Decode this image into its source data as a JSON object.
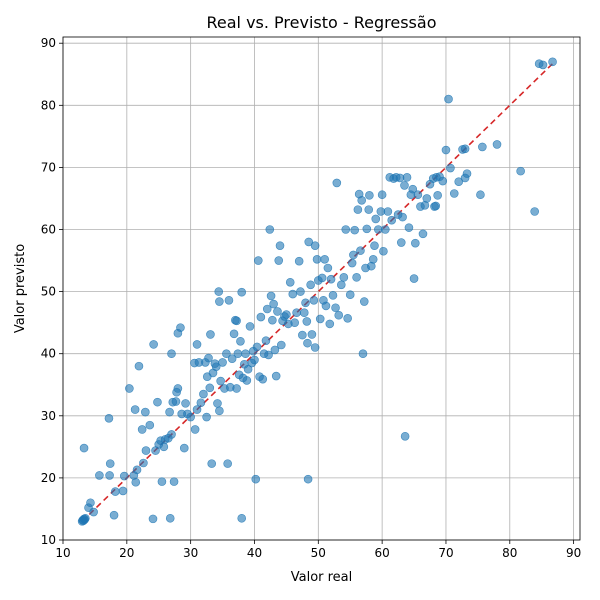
{
  "chart_data": {
    "type": "scatter",
    "title": "Real vs. Previsto - Regressão",
    "xlabel": "Valor real",
    "ylabel": "Valor previsto",
    "xlim": [
      10,
      91
    ],
    "ylim": [
      10,
      91
    ],
    "xticks": [
      10,
      20,
      30,
      40,
      50,
      60,
      70,
      80,
      90
    ],
    "yticks": [
      10,
      20,
      30,
      40,
      50,
      60,
      70,
      80,
      90
    ],
    "grid": true,
    "point_color": "#1f77b4",
    "reference_line": {
      "style": "dashed",
      "color": "#d62728",
      "from": [
        13.0,
        13.0
      ],
      "to": [
        87.0,
        87.0
      ]
    },
    "points": [
      [
        13.0,
        13.0
      ],
      [
        13.1,
        13.2
      ],
      [
        13.2,
        13.1
      ],
      [
        13.3,
        13.4
      ],
      [
        13.4,
        13.3
      ],
      [
        13.5,
        13.5
      ],
      [
        13.3,
        24.8
      ],
      [
        14.0,
        15.2
      ],
      [
        14.3,
        16.0
      ],
      [
        14.8,
        14.5
      ],
      [
        15.7,
        20.4
      ],
      [
        17.2,
        29.6
      ],
      [
        17.3,
        20.4
      ],
      [
        17.4,
        22.3
      ],
      [
        18.0,
        14.0
      ],
      [
        18.2,
        17.8
      ],
      [
        19.4,
        17.9
      ],
      [
        19.6,
        20.3
      ],
      [
        20.4,
        34.4
      ],
      [
        21.1,
        20.4
      ],
      [
        21.3,
        31.0
      ],
      [
        21.4,
        19.3
      ],
      [
        21.6,
        21.3
      ],
      [
        21.9,
        38.0
      ],
      [
        22.4,
        27.8
      ],
      [
        22.6,
        22.4
      ],
      [
        22.9,
        30.6
      ],
      [
        23.0,
        24.4
      ],
      [
        23.6,
        28.5
      ],
      [
        24.1,
        13.4
      ],
      [
        24.2,
        41.5
      ],
      [
        24.5,
        24.4
      ],
      [
        24.8,
        32.2
      ],
      [
        25.0,
        25.4
      ],
      [
        25.3,
        26.0
      ],
      [
        25.5,
        19.4
      ],
      [
        25.8,
        25.0
      ],
      [
        26.0,
        26.2
      ],
      [
        26.5,
        26.4
      ],
      [
        26.7,
        30.6
      ],
      [
        26.8,
        13.5
      ],
      [
        27.0,
        40.0
      ],
      [
        27.0,
        27.0
      ],
      [
        27.2,
        32.2
      ],
      [
        27.4,
        19.4
      ],
      [
        27.7,
        32.3
      ],
      [
        27.8,
        33.8
      ],
      [
        28.0,
        34.4
      ],
      [
        28.0,
        43.3
      ],
      [
        28.4,
        44.2
      ],
      [
        28.6,
        30.3
      ],
      [
        29.0,
        24.8
      ],
      [
        29.2,
        32.0
      ],
      [
        29.5,
        30.3
      ],
      [
        30.0,
        29.8
      ],
      [
        30.6,
        38.5
      ],
      [
        30.7,
        27.8
      ],
      [
        31.0,
        31.0
      ],
      [
        31.0,
        41.5
      ],
      [
        31.3,
        38.6
      ],
      [
        31.6,
        32.1
      ],
      [
        32.0,
        33.5
      ],
      [
        32.3,
        38.6
      ],
      [
        32.5,
        29.8
      ],
      [
        32.6,
        36.3
      ],
      [
        32.8,
        39.3
      ],
      [
        33.0,
        34.5
      ],
      [
        33.1,
        43.1
      ],
      [
        33.3,
        22.3
      ],
      [
        33.5,
        36.9
      ],
      [
        33.8,
        38.4
      ],
      [
        34.0,
        37.9
      ],
      [
        34.2,
        32.0
      ],
      [
        34.4,
        50.0
      ],
      [
        34.5,
        48.4
      ],
      [
        34.5,
        30.8
      ],
      [
        34.7,
        35.6
      ],
      [
        35.0,
        38.6
      ],
      [
        35.3,
        34.4
      ],
      [
        35.6,
        40.0
      ],
      [
        35.8,
        22.3
      ],
      [
        36.0,
        48.6
      ],
      [
        36.2,
        34.6
      ],
      [
        36.5,
        39.2
      ],
      [
        36.8,
        43.2
      ],
      [
        37.0,
        45.4
      ],
      [
        37.2,
        45.3
      ],
      [
        37.2,
        34.4
      ],
      [
        37.4,
        40.0
      ],
      [
        37.6,
        36.6
      ],
      [
        37.8,
        42.0
      ],
      [
        38.0,
        13.5
      ],
      [
        38.0,
        49.9
      ],
      [
        38.2,
        36.1
      ],
      [
        38.4,
        38.3
      ],
      [
        38.6,
        40.0
      ],
      [
        38.8,
        35.7
      ],
      [
        39.0,
        37.5
      ],
      [
        39.3,
        44.4
      ],
      [
        39.6,
        38.5
      ],
      [
        39.8,
        40.4
      ],
      [
        40.0,
        39.0
      ],
      [
        40.2,
        19.8
      ],
      [
        40.4,
        41.1
      ],
      [
        40.6,
        55.0
      ],
      [
        40.8,
        36.3
      ],
      [
        41.0,
        45.9
      ],
      [
        41.3,
        35.9
      ],
      [
        41.5,
        40.0
      ],
      [
        41.8,
        42.1
      ],
      [
        42.0,
        47.2
      ],
      [
        42.2,
        39.8
      ],
      [
        42.4,
        60.0
      ],
      [
        42.6,
        49.3
      ],
      [
        42.8,
        45.4
      ],
      [
        43.0,
        48.0
      ],
      [
        43.2,
        40.6
      ],
      [
        43.4,
        36.4
      ],
      [
        43.6,
        46.8
      ],
      [
        43.8,
        55.0
      ],
      [
        44.0,
        57.4
      ],
      [
        44.2,
        41.4
      ],
      [
        44.4,
        45.3
      ],
      [
        44.7,
        46.0
      ],
      [
        45.0,
        46.3
      ],
      [
        45.3,
        44.8
      ],
      [
        45.6,
        51.5
      ],
      [
        46.0,
        49.6
      ],
      [
        46.3,
        45.0
      ],
      [
        46.6,
        46.6
      ],
      [
        47.0,
        54.9
      ],
      [
        47.2,
        50.0
      ],
      [
        47.5,
        43.0
      ],
      [
        47.8,
        46.6
      ],
      [
        48.0,
        48.2
      ],
      [
        48.2,
        45.2
      ],
      [
        48.3,
        41.7
      ],
      [
        48.4,
        19.8
      ],
      [
        48.5,
        58.0
      ],
      [
        48.8,
        51.1
      ],
      [
        49.0,
        43.1
      ],
      [
        49.3,
        48.6
      ],
      [
        49.5,
        57.4
      ],
      [
        49.5,
        41.0
      ],
      [
        49.8,
        55.2
      ],
      [
        50.0,
        51.8
      ],
      [
        50.3,
        45.6
      ],
      [
        50.6,
        52.2
      ],
      [
        50.8,
        48.6
      ],
      [
        51.0,
        55.2
      ],
      [
        51.2,
        47.7
      ],
      [
        51.5,
        53.8
      ],
      [
        51.8,
        44.8
      ],
      [
        52.0,
        52.0
      ],
      [
        52.3,
        49.4
      ],
      [
        52.7,
        47.4
      ],
      [
        52.9,
        67.5
      ],
      [
        53.2,
        46.2
      ],
      [
        53.6,
        51.1
      ],
      [
        54.0,
        52.3
      ],
      [
        54.3,
        60.0
      ],
      [
        54.6,
        45.7
      ],
      [
        55.0,
        49.5
      ],
      [
        55.3,
        54.6
      ],
      [
        55.5,
        55.9
      ],
      [
        55.7,
        59.9
      ],
      [
        56.0,
        52.3
      ],
      [
        56.2,
        63.2
      ],
      [
        56.4,
        65.7
      ],
      [
        56.6,
        56.6
      ],
      [
        56.8,
        64.7
      ],
      [
        57.0,
        40.0
      ],
      [
        57.2,
        48.4
      ],
      [
        57.4,
        53.8
      ],
      [
        57.6,
        60.1
      ],
      [
        57.9,
        63.2
      ],
      [
        58.0,
        65.5
      ],
      [
        58.3,
        54.1
      ],
      [
        58.6,
        55.2
      ],
      [
        58.8,
        57.4
      ],
      [
        59.0,
        61.7
      ],
      [
        59.4,
        60.0
      ],
      [
        59.8,
        62.9
      ],
      [
        60.0,
        65.6
      ],
      [
        60.2,
        56.5
      ],
      [
        60.5,
        60.0
      ],
      [
        60.9,
        62.9
      ],
      [
        61.2,
        68.4
      ],
      [
        61.5,
        61.5
      ],
      [
        61.8,
        68.2
      ],
      [
        62.2,
        68.4
      ],
      [
        62.5,
        62.4
      ],
      [
        62.8,
        68.3
      ],
      [
        63.0,
        57.9
      ],
      [
        63.2,
        62.0
      ],
      [
        63.5,
        67.1
      ],
      [
        63.6,
        26.7
      ],
      [
        63.9,
        68.4
      ],
      [
        64.2,
        60.3
      ],
      [
        64.5,
        65.6
      ],
      [
        64.8,
        66.5
      ],
      [
        65.0,
        52.1
      ],
      [
        65.2,
        57.8
      ],
      [
        65.6,
        65.6
      ],
      [
        66.0,
        63.7
      ],
      [
        66.4,
        59.3
      ],
      [
        66.7,
        63.9
      ],
      [
        67.0,
        65.0
      ],
      [
        67.5,
        67.3
      ],
      [
        68.0,
        68.2
      ],
      [
        68.2,
        63.7
      ],
      [
        68.4,
        63.8
      ],
      [
        68.5,
        68.4
      ],
      [
        68.7,
        65.5
      ],
      [
        69.0,
        68.5
      ],
      [
        69.5,
        67.8
      ],
      [
        70.0,
        72.8
      ],
      [
        70.4,
        81.0
      ],
      [
        70.7,
        69.9
      ],
      [
        71.3,
        65.8
      ],
      [
        72.0,
        67.7
      ],
      [
        72.6,
        72.9
      ],
      [
        73.0,
        73.0
      ],
      [
        73.0,
        68.3
      ],
      [
        73.3,
        69.0
      ],
      [
        75.4,
        65.6
      ],
      [
        75.7,
        73.3
      ],
      [
        78.0,
        73.7
      ],
      [
        81.7,
        69.4
      ],
      [
        83.9,
        62.9
      ],
      [
        84.6,
        86.7
      ],
      [
        85.2,
        86.5
      ],
      [
        86.7,
        87.0
      ]
    ]
  }
}
